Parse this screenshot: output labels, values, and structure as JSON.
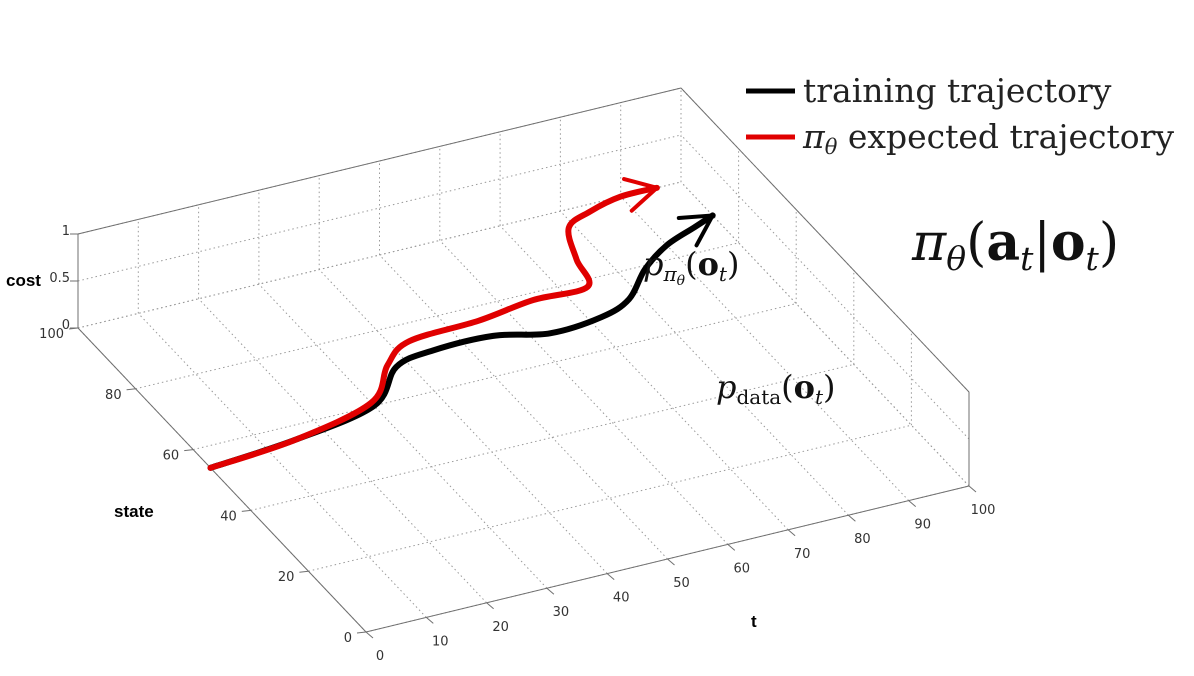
{
  "chart_data": {
    "type": "line",
    "projection": "3d",
    "title": "",
    "xlabel": "t",
    "ylabel": "state",
    "zlabel": "cost",
    "xlim": [
      0,
      100
    ],
    "ylim": [
      0,
      100
    ],
    "zlim": [
      0,
      1
    ],
    "xticks": [
      "0",
      "10",
      "20",
      "30",
      "40",
      "50",
      "60",
      "70",
      "80",
      "90",
      "100"
    ],
    "yticks": [
      "0",
      "20",
      "40",
      "60",
      "80",
      "100"
    ],
    "zticks": [
      "0",
      "0.5",
      "1"
    ],
    "grid": true,
    "legend_position": "top-right",
    "series": [
      {
        "name": "training trajectory",
        "color": "#000000",
        "annotation": "p_data(o_t)",
        "x": [
          0,
          15,
          30,
          38,
          45,
          55,
          63,
          72,
          78,
          84,
          90,
          96,
          100
        ],
        "y": [
          54,
          56,
          60,
          69,
          71,
          71,
          68,
          69,
          72,
          79,
          84,
          87,
          89
        ],
        "z": [
          0,
          0,
          0,
          0,
          0,
          0,
          0,
          0,
          0,
          0,
          0,
          0,
          0
        ]
      },
      {
        "name": "π_θ expected trajectory",
        "color": "#e00000",
        "annotation": "p_πθ(o_t)",
        "x": [
          0,
          15,
          30,
          37,
          43,
          55,
          65,
          74,
          76,
          79,
          84,
          90,
          96
        ],
        "y": [
          54,
          56,
          61,
          70,
          75,
          76,
          78,
          78,
          86,
          95,
          98,
          100,
          100
        ],
        "z": [
          0,
          0,
          0,
          0,
          0,
          0,
          0,
          0,
          0,
          0,
          0,
          0,
          0
        ]
      }
    ]
  },
  "legend": {
    "entries": [
      {
        "label": "training trajectory",
        "color": "#000000"
      },
      {
        "label": "π",
        "sub": "θ",
        "rest": " expected trajectory",
        "color": "#e00000"
      }
    ]
  },
  "policy_formula": {
    "pi": "π",
    "theta": "θ",
    "open": "(",
    "a": "a",
    "t1": "t",
    "bar": "|",
    "o": "o",
    "t2": "t",
    "close": ")"
  },
  "annotations": {
    "pi_theta": {
      "p": "p",
      "sub": "π",
      "subsub": "θ",
      "open": "(",
      "o": "o",
      "t": "t",
      "close": ")"
    },
    "data": {
      "p": "p",
      "sub": "data",
      "open": "(",
      "o": "o",
      "t": "t",
      "close": ")"
    }
  }
}
